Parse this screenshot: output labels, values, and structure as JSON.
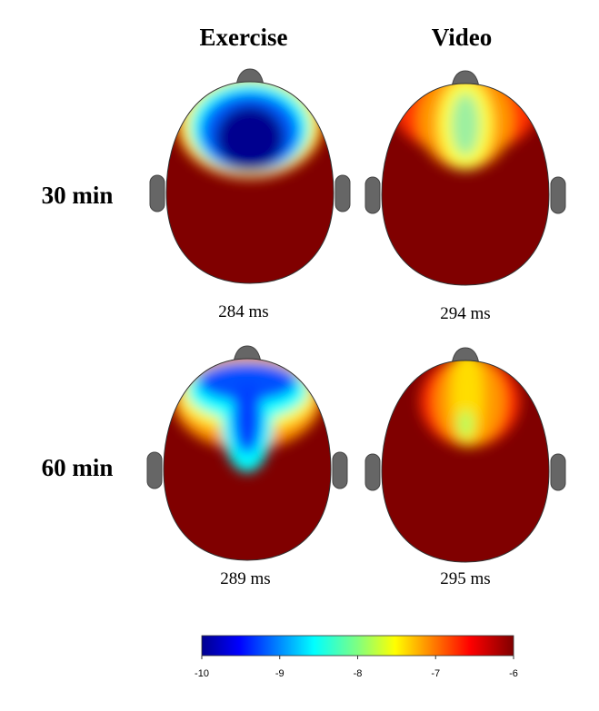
{
  "columns": [
    "Exercise",
    "Video"
  ],
  "rows": [
    "30 min",
    "60 min"
  ],
  "panels": [
    [
      "284 ms",
      "294 ms"
    ],
    [
      "289 ms",
      "295 ms"
    ]
  ],
  "colorbar": {
    "ticks": [
      -10,
      -9,
      -8,
      -7,
      -6
    ]
  }
}
